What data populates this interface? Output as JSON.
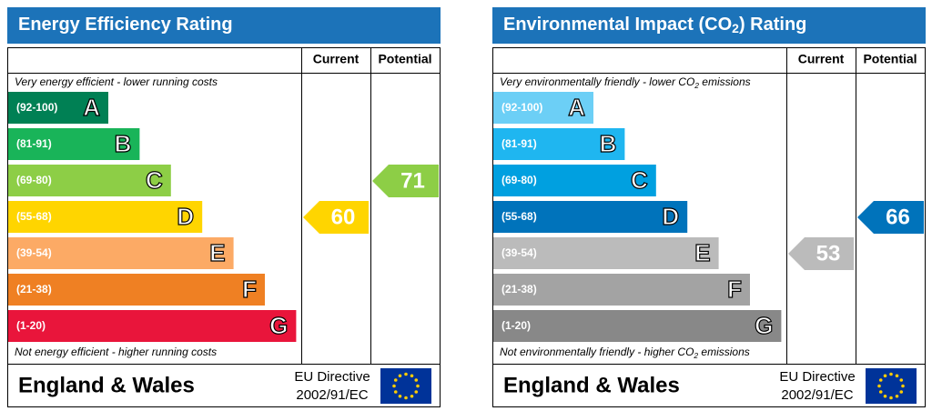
{
  "panels": [
    {
      "title": [
        "Energy Efficiency Rating"
      ],
      "columns": [
        "Current",
        "Potential"
      ],
      "top_note": [
        "Very energy efficient - lower running costs"
      ],
      "bottom_note": [
        "Not energy efficient - higher running costs"
      ],
      "bands": [
        {
          "range": "(92-100)",
          "letter": "A",
          "color": "#008054"
        },
        {
          "range": "(81-91)",
          "letter": "B",
          "color": "#19b459"
        },
        {
          "range": "(69-80)",
          "letter": "C",
          "color": "#8dce46"
        },
        {
          "range": "(55-68)",
          "letter": "D",
          "color": "#ffd500"
        },
        {
          "range": "(39-54)",
          "letter": "E",
          "color": "#fcaa65"
        },
        {
          "range": "(21-38)",
          "letter": "F",
          "color": "#ef8023"
        },
        {
          "range": "(1-20)",
          "letter": "G",
          "color": "#e9153b"
        }
      ],
      "current": 60,
      "potential": 71,
      "footer": {
        "region": "England & Wales",
        "directive": [
          "EU Directive",
          "2002/91/EC"
        ]
      }
    },
    {
      "title": [
        "Environmental Impact (CO",
        "2",
        ") Rating"
      ],
      "columns": [
        "Current",
        "Potential"
      ],
      "top_note": [
        "Very environmentally friendly - lower CO",
        "2",
        " emissions"
      ],
      "bottom_note": [
        "Not environmentally friendly - higher CO",
        "2",
        " emissions"
      ],
      "bands": [
        {
          "range": "(92-100)",
          "letter": "A",
          "color": "#6ccff6"
        },
        {
          "range": "(81-91)",
          "letter": "B",
          "color": "#1fb6f0"
        },
        {
          "range": "(69-80)",
          "letter": "C",
          "color": "#00a0e0"
        },
        {
          "range": "(55-68)",
          "letter": "D",
          "color": "#0073bb"
        },
        {
          "range": "(39-54)",
          "letter": "E",
          "color": "#bbbbbb"
        },
        {
          "range": "(21-38)",
          "letter": "F",
          "color": "#a3a3a3"
        },
        {
          "range": "(1-20)",
          "letter": "G",
          "color": "#888888"
        }
      ],
      "current": 53,
      "potential": 66,
      "footer": {
        "region": "England & Wales",
        "directive": [
          "EU Directive",
          "2002/91/EC"
        ]
      }
    }
  ]
}
